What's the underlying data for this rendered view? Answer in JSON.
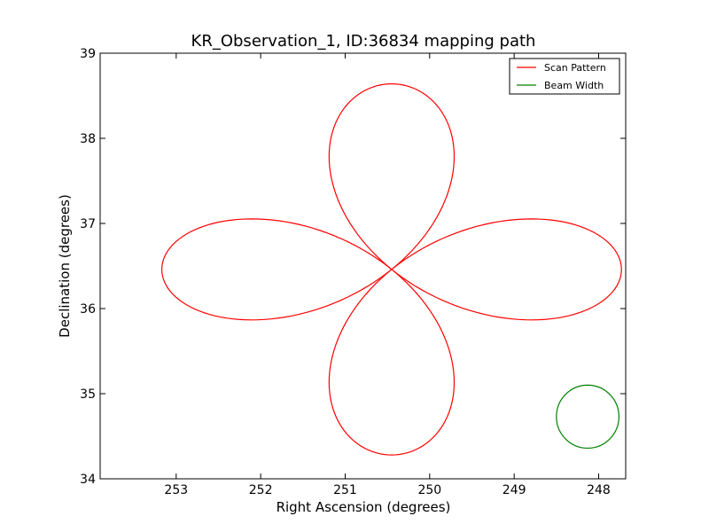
{
  "chart_data": {
    "type": "line",
    "title": "KR_Observation_1, ID:36834 mapping path",
    "xlabel": "Right Ascension (degrees)",
    "ylabel": "Declination (degrees)",
    "xlim": [
      253.9,
      247.68
    ],
    "ylim": [
      34,
      39
    ],
    "x_reversed": true,
    "xticks": [
      253,
      252,
      251,
      250,
      249,
      248
    ],
    "yticks": [
      34,
      35,
      36,
      37,
      38,
      39
    ],
    "grid": false,
    "legend_position": "top-right",
    "series": [
      {
        "name": "Scan Pattern",
        "color": "#ff0000",
        "shape": "four-petal rose (rhodonea) scan path",
        "center": {
          "ra": 250.45,
          "dec": 36.46
        },
        "ra_amplitude": 2.72,
        "dec_amplitude": 2.18,
        "petals": 4
      },
      {
        "name": "Beam Width",
        "color": "#008000",
        "shape": "circle",
        "center": {
          "ra": 248.13,
          "dec": 34.73
        },
        "ra_radius": 0.37,
        "dec_radius": 0.37
      }
    ]
  }
}
